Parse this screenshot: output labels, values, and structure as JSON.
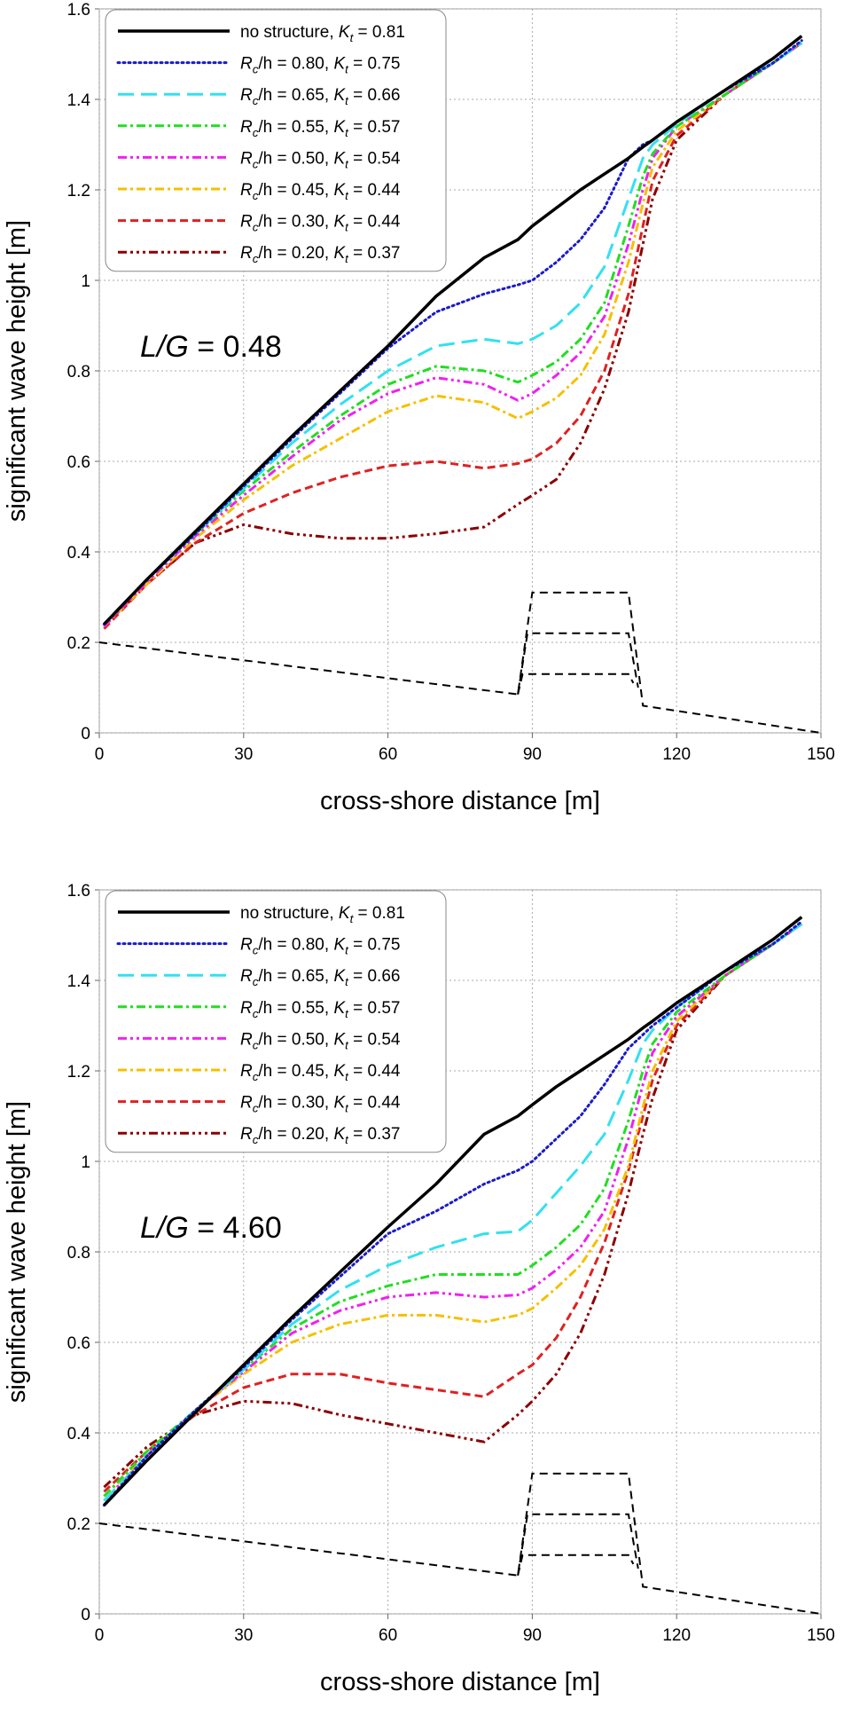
{
  "chart_data": [
    {
      "type": "line",
      "annotation": "L/G = 0.48",
      "xlabel": "cross-shore distance [m]",
      "ylabel": "significant wave height [m]",
      "xlim": [
        0,
        150
      ],
      "ylim": [
        0,
        1.6
      ],
      "xticks": [
        0,
        30,
        60,
        90,
        120,
        150
      ],
      "yticks": [
        0,
        0.2,
        0.4,
        0.6,
        0.8,
        1,
        1.2,
        1.4,
        1.6
      ],
      "grid": true,
      "legend": "upper left",
      "x": [
        1,
        10,
        20,
        30,
        40,
        50,
        60,
        70,
        80,
        87,
        90,
        95,
        100,
        105,
        110,
        113,
        115,
        120,
        130,
        140,
        146
      ],
      "series": [
        {
          "name": "no structure, Kt = 0.81",
          "color": "#000000",
          "style": "solid",
          "values": [
            0.24,
            0.34,
            0.445,
            0.55,
            0.655,
            0.755,
            0.855,
            0.965,
            1.05,
            1.09,
            1.12,
            1.16,
            1.2,
            1.235,
            1.27,
            1.295,
            1.31,
            1.35,
            1.42,
            1.49,
            1.54
          ]
        },
        {
          "name": "Rc/h = 0.80, Kt = 0.75",
          "color": "#1a1acc",
          "style": "dotted",
          "values": [
            0.24,
            0.34,
            0.44,
            0.545,
            0.65,
            0.75,
            0.85,
            0.93,
            0.97,
            0.99,
            1.0,
            1.04,
            1.09,
            1.16,
            1.27,
            1.3,
            1.31,
            1.35,
            1.42,
            1.48,
            1.53
          ]
        },
        {
          "name": "Rc/h = 0.65, Kt = 0.66",
          "color": "#33e0f0",
          "style": "longdash",
          "values": [
            0.24,
            0.34,
            0.44,
            0.54,
            0.64,
            0.725,
            0.8,
            0.855,
            0.87,
            0.86,
            0.87,
            0.9,
            0.95,
            1.03,
            1.18,
            1.27,
            1.3,
            1.345,
            1.42,
            1.48,
            1.525
          ]
        },
        {
          "name": "Rc/h = 0.55, Kt = 0.57",
          "color": "#22dd22",
          "style": "dashdot",
          "values": [
            0.24,
            0.34,
            0.44,
            0.535,
            0.62,
            0.7,
            0.77,
            0.81,
            0.8,
            0.775,
            0.79,
            0.82,
            0.87,
            0.95,
            1.12,
            1.23,
            1.28,
            1.34,
            1.41,
            1.48,
            1.525
          ]
        },
        {
          "name": "Rc/h = 0.50, Kt = 0.54",
          "color": "#ee22ee",
          "style": "dashdotdot",
          "values": [
            0.235,
            0.335,
            0.435,
            0.525,
            0.61,
            0.69,
            0.75,
            0.785,
            0.77,
            0.735,
            0.75,
            0.79,
            0.84,
            0.92,
            1.08,
            1.2,
            1.27,
            1.34,
            1.41,
            1.48,
            1.525
          ]
        },
        {
          "name": "Rc/h = 0.45, Kt = 0.44",
          "color": "#f5c000",
          "style": "dashdot",
          "values": [
            0.235,
            0.33,
            0.43,
            0.515,
            0.59,
            0.65,
            0.71,
            0.745,
            0.73,
            0.695,
            0.71,
            0.74,
            0.79,
            0.88,
            1.04,
            1.17,
            1.25,
            1.33,
            1.41,
            1.48,
            1.525
          ]
        },
        {
          "name": "Rc/h = 0.30, Kt = 0.44",
          "color": "#dd2222",
          "style": "dashed",
          "values": [
            0.23,
            0.33,
            0.42,
            0.485,
            0.53,
            0.565,
            0.59,
            0.6,
            0.585,
            0.595,
            0.605,
            0.64,
            0.7,
            0.8,
            0.97,
            1.12,
            1.22,
            1.32,
            1.41,
            1.48,
            1.525
          ]
        },
        {
          "name": "Rc/h = 0.20, Kt = 0.37",
          "color": "#8b0000",
          "style": "dashdotdotdot",
          "values": [
            0.235,
            0.33,
            0.42,
            0.46,
            0.44,
            0.43,
            0.43,
            0.44,
            0.455,
            0.505,
            0.525,
            0.56,
            0.64,
            0.76,
            0.93,
            1.08,
            1.18,
            1.31,
            1.41,
            1.48,
            1.525
          ]
        }
      ],
      "profiles": [
        {
          "x": [
            0,
            87,
            90,
            110,
            113,
            150
          ],
          "values": [
            0.2,
            0.085,
            0.31,
            0.31,
            0.06,
            0.0
          ]
        },
        {
          "x": [
            87,
            89,
            110,
            112
          ],
          "values": [
            0.085,
            0.22,
            0.22,
            0.1
          ]
        },
        {
          "x": [
            87,
            88,
            110,
            111
          ],
          "values": [
            0.085,
            0.13,
            0.13,
            0.11
          ]
        }
      ]
    },
    {
      "type": "line",
      "annotation": "L/G = 4.60",
      "xlabel": "cross-shore distance [m]",
      "ylabel": "significant wave height [m]",
      "xlim": [
        0,
        150
      ],
      "ylim": [
        0,
        1.6
      ],
      "xticks": [
        0,
        30,
        60,
        90,
        120,
        150
      ],
      "yticks": [
        0,
        0.2,
        0.4,
        0.6,
        0.8,
        1,
        1.2,
        1.4,
        1.6
      ],
      "grid": true,
      "legend": "upper left",
      "x": [
        1,
        10,
        20,
        30,
        40,
        50,
        60,
        70,
        80,
        87,
        90,
        95,
        100,
        105,
        110,
        113,
        115,
        120,
        130,
        140,
        146
      ],
      "series": [
        {
          "name": "no structure, Kt = 0.81",
          "color": "#000000",
          "style": "solid",
          "values": [
            0.24,
            0.34,
            0.445,
            0.55,
            0.655,
            0.755,
            0.855,
            0.95,
            1.06,
            1.1,
            1.125,
            1.165,
            1.2,
            1.235,
            1.27,
            1.295,
            1.31,
            1.35,
            1.42,
            1.49,
            1.54
          ]
        },
        {
          "name": "Rc/h = 0.80, Kt = 0.75",
          "color": "#1a1acc",
          "style": "dotted",
          "values": [
            0.24,
            0.35,
            0.45,
            0.545,
            0.65,
            0.745,
            0.84,
            0.89,
            0.95,
            0.98,
            1.0,
            1.05,
            1.1,
            1.17,
            1.25,
            1.28,
            1.3,
            1.34,
            1.42,
            1.48,
            1.53
          ]
        },
        {
          "name": "Rc/h = 0.65, Kt = 0.66",
          "color": "#33e0f0",
          "style": "longdash",
          "values": [
            0.25,
            0.35,
            0.45,
            0.54,
            0.64,
            0.715,
            0.77,
            0.81,
            0.84,
            0.845,
            0.87,
            0.93,
            0.99,
            1.06,
            1.18,
            1.26,
            1.29,
            1.34,
            1.42,
            1.48,
            1.525
          ]
        },
        {
          "name": "Rc/h = 0.55, Kt = 0.57",
          "color": "#22dd22",
          "style": "dashdot",
          "values": [
            0.26,
            0.36,
            0.45,
            0.54,
            0.63,
            0.69,
            0.725,
            0.75,
            0.75,
            0.75,
            0.77,
            0.81,
            0.86,
            0.94,
            1.09,
            1.2,
            1.26,
            1.33,
            1.41,
            1.48,
            1.525
          ]
        },
        {
          "name": "Rc/h = 0.50, Kt = 0.54",
          "color": "#ee22ee",
          "style": "dashdotdot",
          "values": [
            0.25,
            0.35,
            0.45,
            0.535,
            0.62,
            0.67,
            0.7,
            0.71,
            0.7,
            0.705,
            0.72,
            0.76,
            0.81,
            0.89,
            1.05,
            1.17,
            1.24,
            1.32,
            1.41,
            1.48,
            1.525
          ]
        },
        {
          "name": "Rc/h = 0.45, Kt = 0.44",
          "color": "#f5c000",
          "style": "dashdot",
          "values": [
            0.26,
            0.35,
            0.45,
            0.53,
            0.6,
            0.64,
            0.66,
            0.66,
            0.645,
            0.66,
            0.675,
            0.72,
            0.77,
            0.85,
            0.99,
            1.12,
            1.2,
            1.31,
            1.41,
            1.48,
            1.525
          ]
        },
        {
          "name": "Rc/h = 0.30, Kt = 0.44",
          "color": "#dd2222",
          "style": "dashed",
          "values": [
            0.27,
            0.36,
            0.44,
            0.5,
            0.53,
            0.53,
            0.51,
            0.495,
            0.48,
            0.53,
            0.55,
            0.61,
            0.7,
            0.82,
            0.98,
            1.1,
            1.18,
            1.3,
            1.41,
            1.48,
            1.525
          ]
        },
        {
          "name": "Rc/h = 0.20, Kt = 0.37",
          "color": "#8b0000",
          "style": "dashdotdotdot",
          "values": [
            0.28,
            0.37,
            0.44,
            0.47,
            0.465,
            0.44,
            0.42,
            0.4,
            0.38,
            0.44,
            0.47,
            0.53,
            0.62,
            0.75,
            0.93,
            1.06,
            1.14,
            1.29,
            1.41,
            1.48,
            1.525
          ]
        }
      ],
      "profiles": [
        {
          "x": [
            0,
            87,
            90,
            110,
            113,
            150
          ],
          "values": [
            0.2,
            0.085,
            0.31,
            0.31,
            0.06,
            0.0
          ]
        },
        {
          "x": [
            87,
            89,
            110,
            112
          ],
          "values": [
            0.085,
            0.22,
            0.22,
            0.1
          ]
        },
        {
          "x": [
            87,
            88,
            110,
            111
          ],
          "values": [
            0.085,
            0.13,
            0.13,
            0.11
          ]
        }
      ]
    }
  ]
}
